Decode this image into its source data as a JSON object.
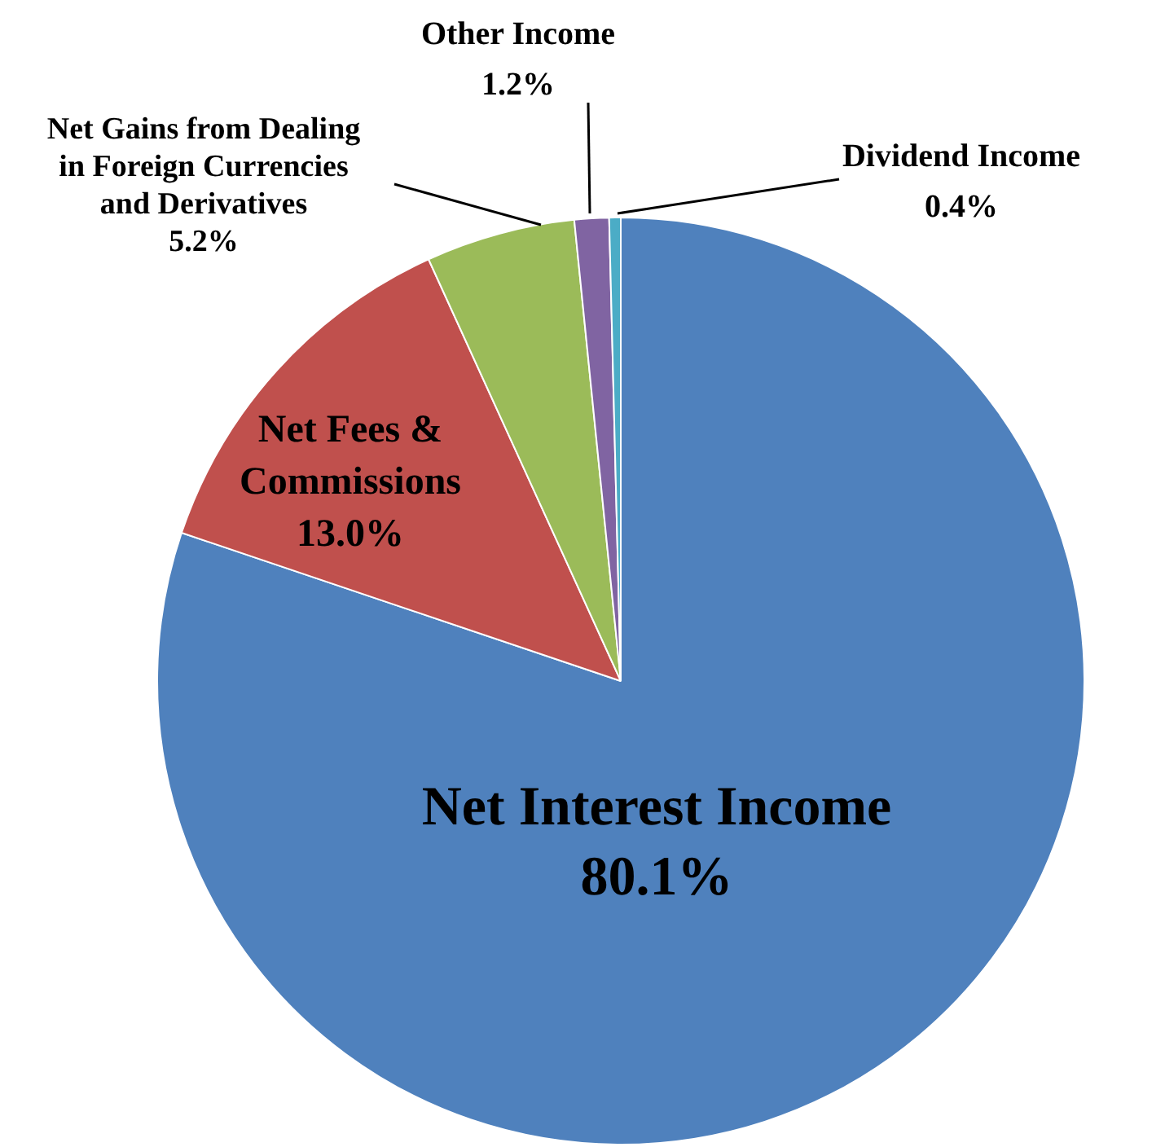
{
  "chart_data": {
    "type": "pie",
    "categories": [
      "Net Interest Income",
      "Net Fees & Commissions",
      "Net Gains from Dealing in Foreign Currencies and Derivatives",
      "Other Income",
      "Dividend Income"
    ],
    "values": [
      80.1,
      13.0,
      5.2,
      1.2,
      0.4
    ],
    "value_labels": [
      "80.1%",
      "13.0%",
      "5.2%",
      "1.2%",
      "0.4%"
    ],
    "colors": [
      "#4f81bd",
      "#c0504d",
      "#9bbb59",
      "#8064a2",
      "#4bacc6"
    ],
    "legend": false
  }
}
